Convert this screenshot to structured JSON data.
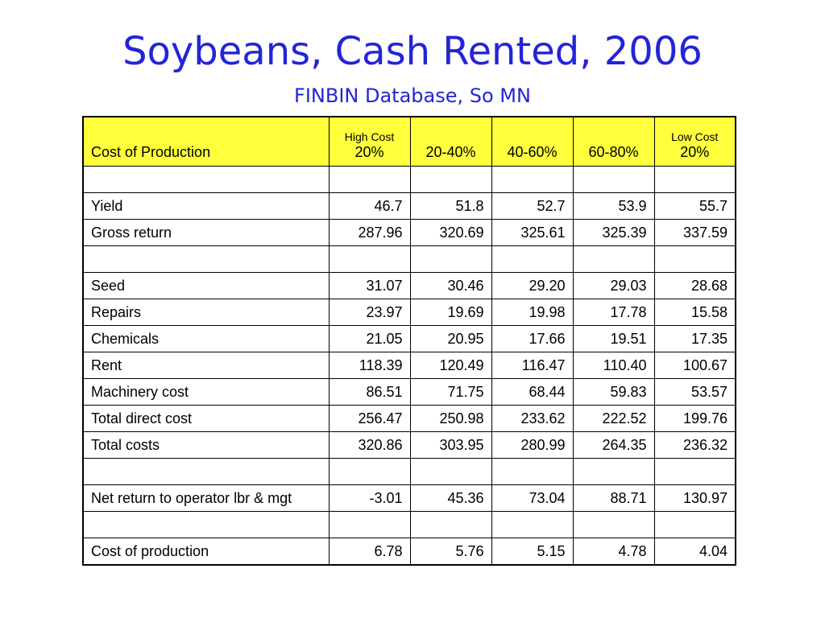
{
  "title": "Soybeans, Cash Rented, 2006",
  "subtitle": "FINBIN Database, So MN",
  "table": {
    "header": {
      "label": "Cost of Production",
      "columns": [
        {
          "top": "High Cost",
          "main": "20%"
        },
        {
          "top": "",
          "main": "20-40%"
        },
        {
          "top": "",
          "main": "40-60%"
        },
        {
          "top": "",
          "main": "60-80%"
        },
        {
          "top": "Low Cost",
          "main": "20%"
        }
      ]
    },
    "rows": [
      {
        "label": "",
        "values": [
          "",
          "",
          "",
          "",
          ""
        ]
      },
      {
        "label": "Yield",
        "values": [
          "46.7",
          "51.8",
          "52.7",
          "53.9",
          "55.7"
        ]
      },
      {
        "label": "Gross return",
        "values": [
          "287.96",
          "320.69",
          "325.61",
          "325.39",
          "337.59"
        ]
      },
      {
        "label": "",
        "values": [
          "",
          "",
          "",
          "",
          ""
        ]
      },
      {
        "label": "Seed",
        "values": [
          "31.07",
          "30.46",
          "29.20",
          "29.03",
          "28.68"
        ]
      },
      {
        "label": "Repairs",
        "values": [
          "23.97",
          "19.69",
          "19.98",
          "17.78",
          "15.58"
        ]
      },
      {
        "label": "Chemicals",
        "values": [
          "21.05",
          "20.95",
          "17.66",
          "19.51",
          "17.35"
        ]
      },
      {
        "label": "Rent",
        "values": [
          "118.39",
          "120.49",
          "116.47",
          "110.40",
          "100.67"
        ]
      },
      {
        "label": "Machinery cost",
        "values": [
          "86.51",
          "71.75",
          "68.44",
          "59.83",
          "53.57"
        ]
      },
      {
        "label": "Total direct cost",
        "values": [
          "256.47",
          "250.98",
          "233.62",
          "222.52",
          "199.76"
        ]
      },
      {
        "label": "Total costs",
        "values": [
          "320.86",
          "303.95",
          "280.99",
          "264.35",
          "236.32"
        ]
      },
      {
        "label": "",
        "values": [
          "",
          "",
          "",
          "",
          ""
        ]
      },
      {
        "label": "Net return to operator lbr & mgt",
        "values": [
          "-3.01",
          "45.36",
          "73.04",
          "88.71",
          "130.97"
        ]
      },
      {
        "label": "",
        "values": [
          "",
          "",
          "",
          "",
          ""
        ]
      },
      {
        "label": "Cost of production",
        "values": [
          "6.78",
          "5.76",
          "5.15",
          "4.78",
          "4.04"
        ]
      }
    ]
  },
  "colors": {
    "title": "#2424d8",
    "header_background": "#ffff3c",
    "border": "#000000"
  }
}
